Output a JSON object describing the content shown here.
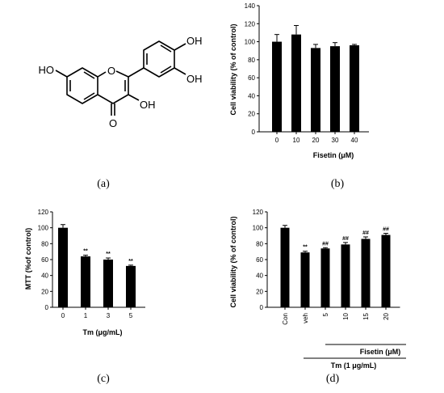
{
  "panel_labels": [
    "(a)",
    "(b)",
    "(c)",
    "(d)"
  ],
  "molecule": {
    "atoms": {
      "oh_7": "HO",
      "oh_3p": "OH",
      "oh_4p": "OH",
      "oh_3": "OH",
      "o_4": "O",
      "o_ring": "O"
    }
  },
  "chart_data": [
    {
      "panel": "(b)",
      "type": "bar",
      "categories": [
        "0",
        "10",
        "20",
        "30",
        "40"
      ],
      "values": [
        100,
        108,
        93,
        95,
        96
      ],
      "errors": [
        8,
        10,
        4,
        4,
        1
      ],
      "annotations": [
        "",
        "",
        "",
        "",
        ""
      ],
      "xlabel": "Fisetin (μM)",
      "ylabel": "Cell viability  (% of control)",
      "ylim": [
        0,
        140
      ],
      "yticks": [
        0,
        20,
        40,
        60,
        80,
        100,
        120,
        140
      ],
      "bar_color": "#000000"
    },
    {
      "panel": "(c)",
      "type": "bar",
      "categories": [
        "0",
        "1",
        "3",
        "5"
      ],
      "values": [
        100,
        64,
        60,
        52
      ],
      "errors": [
        4,
        1.5,
        2,
        1
      ],
      "annotations": [
        "",
        "**",
        "**",
        "**"
      ],
      "xlabel": "Tm  (μg/mL)",
      "ylabel": "MTT  (%of control)",
      "ylim": [
        0,
        120
      ],
      "yticks": [
        0,
        20,
        40,
        60,
        80,
        100,
        120
      ],
      "bar_color": "#000000"
    },
    {
      "panel": "(d)",
      "type": "bar",
      "categories": [
        "Con",
        "veh",
        "5",
        "10",
        "15",
        "20"
      ],
      "values": [
        100,
        69,
        74,
        79,
        86,
        91
      ],
      "errors": [
        3,
        1.5,
        1,
        2.5,
        2.5,
        2
      ],
      "annotations": [
        "",
        "**",
        "##",
        "##",
        "##",
        "##"
      ],
      "xlabel": "",
      "ylabel": "Cell viability (% of control)",
      "ylim": [
        0,
        120
      ],
      "yticks": [
        0,
        20,
        40,
        60,
        80,
        100,
        120
      ],
      "bar_color": "#000000",
      "group_labels": {
        "fisetin": "Fisetin (μM)",
        "tm": "Tm (1 μg/mL)"
      }
    }
  ]
}
